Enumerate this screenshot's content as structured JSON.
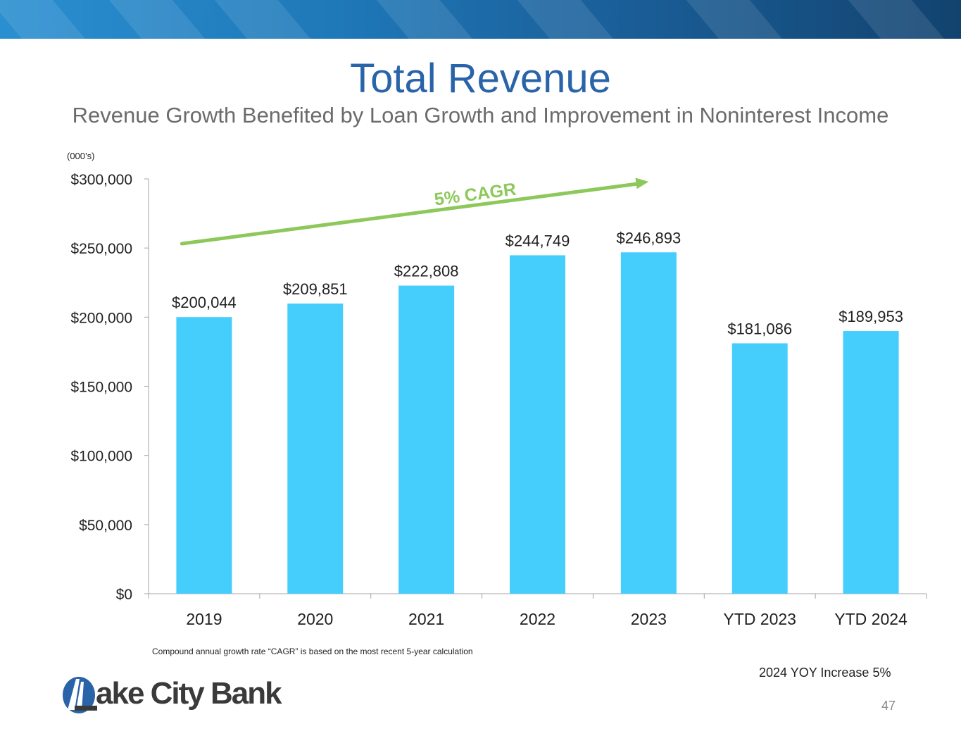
{
  "header": {
    "title": "Total Revenue",
    "subtitle": "Revenue Growth Benefited by Loan Growth and Improvement in Noninterest Income"
  },
  "chart_data": {
    "type": "bar",
    "unit_note": "(000’s)",
    "categories": [
      "2019",
      "2020",
      "2021",
      "2022",
      "2023",
      "YTD 2023",
      "YTD 2024"
    ],
    "values": [
      200044,
      209851,
      222808,
      244749,
      246893,
      181086,
      189953
    ],
    "data_labels": [
      "$200,044",
      "$209,851",
      "$222,808",
      "$244,749",
      "$246,893",
      "$181,086",
      "$189,953"
    ],
    "ylim": [
      0,
      300000
    ],
    "y_ticks": [
      0,
      50000,
      100000,
      150000,
      200000,
      250000,
      300000
    ],
    "y_tick_labels": [
      "$0",
      "$50,000",
      "$100,000",
      "$150,000",
      "$200,000",
      "$250,000",
      "$300,000"
    ],
    "bar_color": "#45cdfc",
    "annotation": {
      "label": "5% CAGR",
      "color": "#8dc85a"
    }
  },
  "footer": {
    "footnote": "Compound annual growth rate “CAGR” is based on the most recent 5-year calculation",
    "yoy_note": "2024 YOY Increase 5%",
    "page_number": "47",
    "logo_text": "ake City Bank",
    "logo_mark_color": "#2a64a8"
  }
}
